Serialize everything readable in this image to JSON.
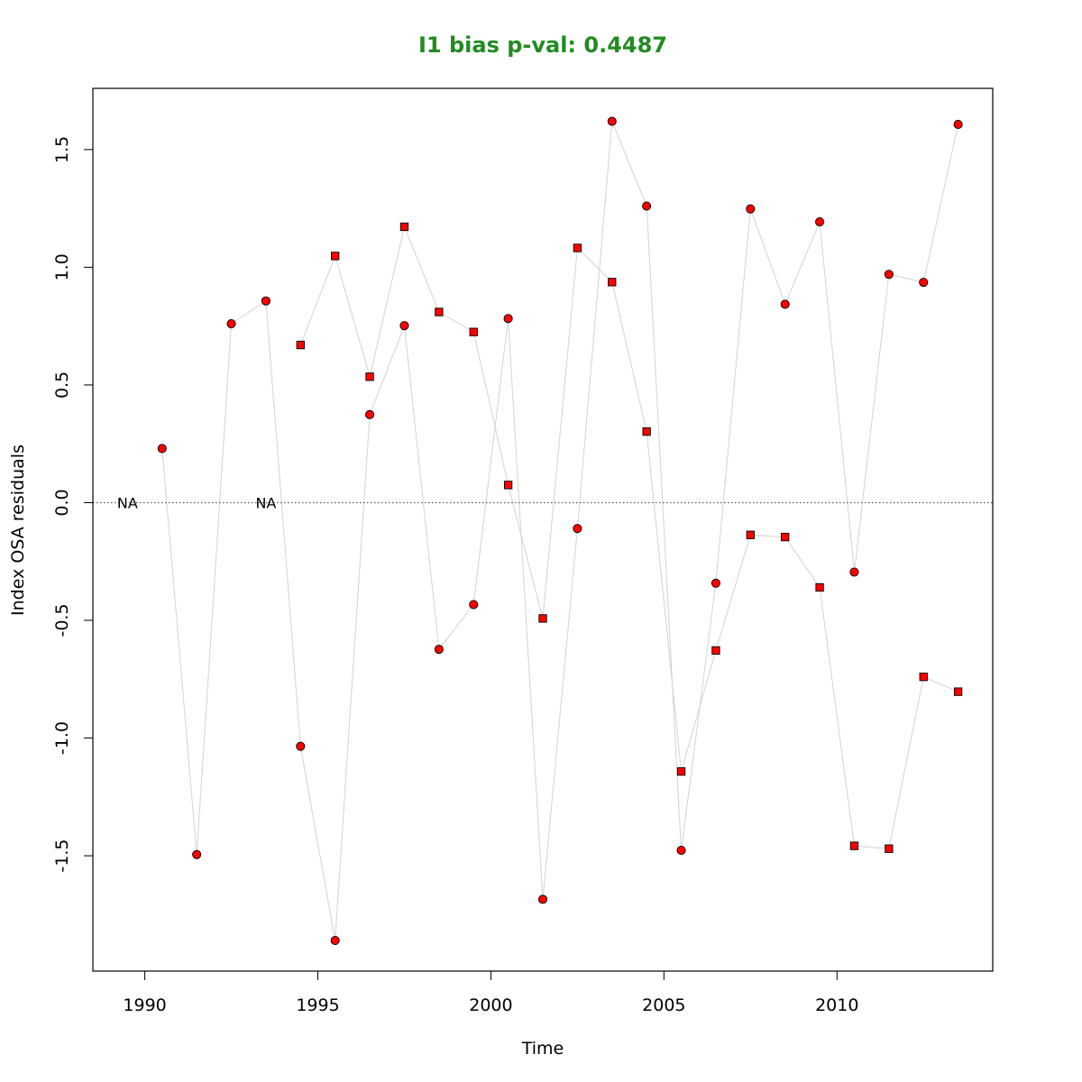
{
  "chart_data": {
    "type": "scatter",
    "title": "I1 bias p-val: 0.4487",
    "title_color": "#228B22",
    "xlabel": "Time",
    "ylabel": "Index OSA residuals",
    "xlim": [
      1988.5,
      2014.5
    ],
    "ylim": [
      -1.99,
      1.76
    ],
    "x_ticks": [
      1990,
      1995,
      2000,
      2005,
      2010
    ],
    "y_ticks": [
      -1.5,
      -1.0,
      -0.5,
      0.0,
      0.5,
      1.0,
      1.5
    ],
    "x_tick_labels": [
      "1990",
      "1995",
      "2000",
      "2005",
      "2010"
    ],
    "y_tick_labels": [
      "-1.5",
      "-1.0",
      "-0.5",
      "0.0",
      "0.5",
      "1.0",
      "1.5"
    ],
    "reference_line": {
      "y": 0,
      "style": "dotted"
    },
    "point_fill": "#ff0000",
    "point_stroke": "#000000",
    "line_color": "#d3d3d3",
    "na_label": "NA",
    "na_positions": [
      1989.5,
      1993.5
    ],
    "series": [
      {
        "marker": "circle",
        "x": [
          1990.5,
          1991.5,
          1992.5,
          1993.5,
          1994.5,
          1995.5,
          1996.5,
          1997.5,
          1998.5,
          1999.5,
          2000.5,
          2001.5,
          2002.5,
          2003.5,
          2004.5,
          2005.5,
          2006.5,
          2007.5,
          2008.5,
          2009.5,
          2010.5,
          2011.5,
          2012.5,
          2013.5
        ],
        "y": [
          0.23,
          -1.495,
          0.76,
          0.857,
          -1.035,
          -1.86,
          0.374,
          0.752,
          -0.623,
          -0.433,
          0.782,
          -1.685,
          -0.11,
          1.62,
          1.26,
          -1.477,
          -0.342,
          1.248,
          0.843,
          1.193,
          -0.295,
          0.97,
          0.936,
          1.607
        ]
      },
      {
        "marker": "square",
        "x": [
          1994.5,
          1995.5,
          1996.5,
          1997.5,
          1998.5,
          1999.5,
          2000.5,
          2001.5,
          2002.5,
          2003.5,
          2004.5,
          2005.5,
          2006.5,
          2007.5,
          2008.5,
          2009.5,
          2010.5,
          2011.5,
          2012.5,
          2013.5
        ],
        "y": [
          0.67,
          1.048,
          0.535,
          1.172,
          0.81,
          0.725,
          0.075,
          -0.492,
          1.082,
          0.937,
          0.302,
          -1.142,
          -0.628,
          -0.137,
          -0.146,
          -0.36,
          -1.458,
          -1.47,
          -0.74,
          -0.803
        ]
      }
    ]
  }
}
